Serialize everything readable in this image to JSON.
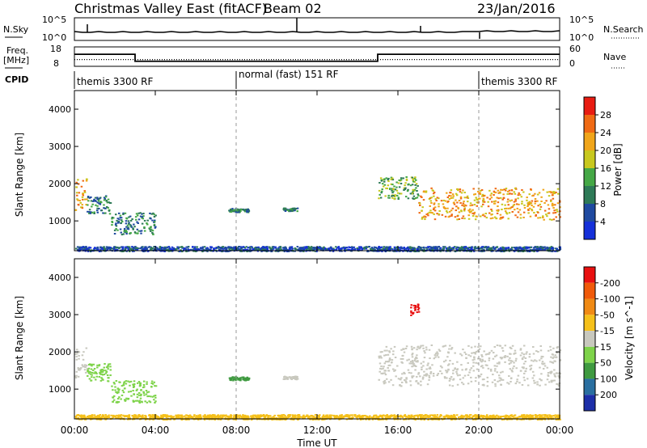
{
  "header": {
    "station": "Christmas Valley East (fitACF)",
    "beam": "Beam 02",
    "date": "23/Jan/2016"
  },
  "nsky_panel": {
    "left_label": "N.Sky",
    "right_label": "N.Search",
    "left_ticks": [
      "10^5",
      "10^0"
    ],
    "right_ticks": [
      "10^5",
      "10^0"
    ]
  },
  "freq_panel": {
    "left_label_1": "Freq.",
    "left_label_2": "[MHz]",
    "right_label": "Nave",
    "left_ticks": [
      "18",
      "8"
    ],
    "right_ticks": [
      "60",
      "0"
    ],
    "freq_steps": [
      {
        "start_h": 0.0,
        "end_h": 3.0,
        "mhz": 14.2
      },
      {
        "start_h": 3.0,
        "end_h": 15.0,
        "mhz": 10.6
      },
      {
        "start_h": 15.0,
        "end_h": 24.0,
        "mhz": 14.2
      }
    ],
    "nave_level": 21
  },
  "cpid": {
    "label": "CPID",
    "segments": [
      {
        "text": "themis 3300 RF",
        "start_h": 0.0
      },
      {
        "text": "normal (fast) 151 RF",
        "start_h": 8.0
      },
      {
        "text": "themis 3300 RF",
        "start_h": 20.0
      }
    ]
  },
  "chart_data": [
    {
      "type": "heatmap",
      "title": "",
      "ylabel": "Slant Range [km]",
      "xlabel": "Time UT",
      "ylim": [
        200,
        4500
      ],
      "xlim": [
        0,
        24
      ],
      "yticks": [
        "1000",
        "2000",
        "3000",
        "4000"
      ],
      "colorbar": {
        "label": "Power [dB]",
        "ticks": [
          "4",
          "8",
          "12",
          "16",
          "20",
          "24",
          "28"
        ],
        "colors": [
          "#1530d9",
          "#1f4aa0",
          "#2e7a57",
          "#45a846",
          "#c8c81e",
          "#f0a51a",
          "#f06a14",
          "#e81c12"
        ]
      },
      "scatter_regions": [
        {
          "t": [
            0.0,
            0.6
          ],
          "r": [
            1300,
            2200
          ],
          "level": 5
        },
        {
          "t": [
            0.6,
            1.8
          ],
          "r": [
            1200,
            1700
          ],
          "level": 2
        },
        {
          "t": [
            1.8,
            4.0
          ],
          "r": [
            650,
            1250
          ],
          "level": 2
        },
        {
          "t": [
            7.6,
            8.6
          ],
          "r": [
            1250,
            1350
          ],
          "level": 2
        },
        {
          "t": [
            10.3,
            11.0
          ],
          "r": [
            1280,
            1360
          ],
          "level": 2
        },
        {
          "t": [
            15.0,
            17.0
          ],
          "r": [
            1600,
            2200
          ],
          "level": 3
        },
        {
          "t": [
            17.0,
            24.0
          ],
          "r": [
            1050,
            1900
          ],
          "level": 5
        },
        {
          "t": [
            0.0,
            24.0
          ],
          "r": [
            200,
            330
          ],
          "level": 1
        }
      ]
    },
    {
      "type": "heatmap",
      "title": "",
      "ylabel": "Slant Range [km]",
      "xlabel": "Time UT",
      "ylim": [
        200,
        4500
      ],
      "xlim": [
        0,
        24
      ],
      "yticks": [
        "1000",
        "2000",
        "3000",
        "4000"
      ],
      "xticks": [
        "00:00",
        "04:00",
        "08:00",
        "12:00",
        "16:00",
        "20:00",
        "00:00"
      ],
      "colorbar": {
        "label": "Velocity [m s^-1]",
        "ticks": [
          "200",
          "100",
          "50",
          "15",
          "-15",
          "-50",
          "-100",
          "-200"
        ],
        "colors": [
          "#1d2fa8",
          "#2a6fa0",
          "#3f9a40",
          "#7ed34a",
          "#c8c8be",
          "#f5c01a",
          "#f08a14",
          "#f05a0a",
          "#e81010"
        ]
      },
      "scatter_regions": [
        {
          "t": [
            0.0,
            0.6
          ],
          "r": [
            1300,
            2200
          ],
          "color": "#c8c8be"
        },
        {
          "t": [
            0.6,
            1.8
          ],
          "r": [
            1200,
            1700
          ],
          "color": "#7ed34a"
        },
        {
          "t": [
            1.8,
            4.0
          ],
          "r": [
            650,
            1250
          ],
          "color": "#7ed34a"
        },
        {
          "t": [
            7.6,
            8.6
          ],
          "r": [
            1250,
            1350
          ],
          "color": "#3f9a40"
        },
        {
          "t": [
            10.3,
            11.0
          ],
          "r": [
            1280,
            1360
          ],
          "color": "#c8c8be"
        },
        {
          "t": [
            16.6,
            17.0
          ],
          "r": [
            3000,
            3300
          ],
          "color": "#e81010"
        },
        {
          "t": [
            15.0,
            24.0
          ],
          "r": [
            1100,
            2200
          ],
          "color": "#c8c8be"
        },
        {
          "t": [
            0.0,
            24.0
          ],
          "r": [
            200,
            330
          ],
          "color": "#f5c01a"
        }
      ]
    }
  ],
  "dashed_marker_hours": [
    8,
    20
  ],
  "legend_markers": {
    "nsearch": "dotted",
    "nave": "dotted"
  }
}
